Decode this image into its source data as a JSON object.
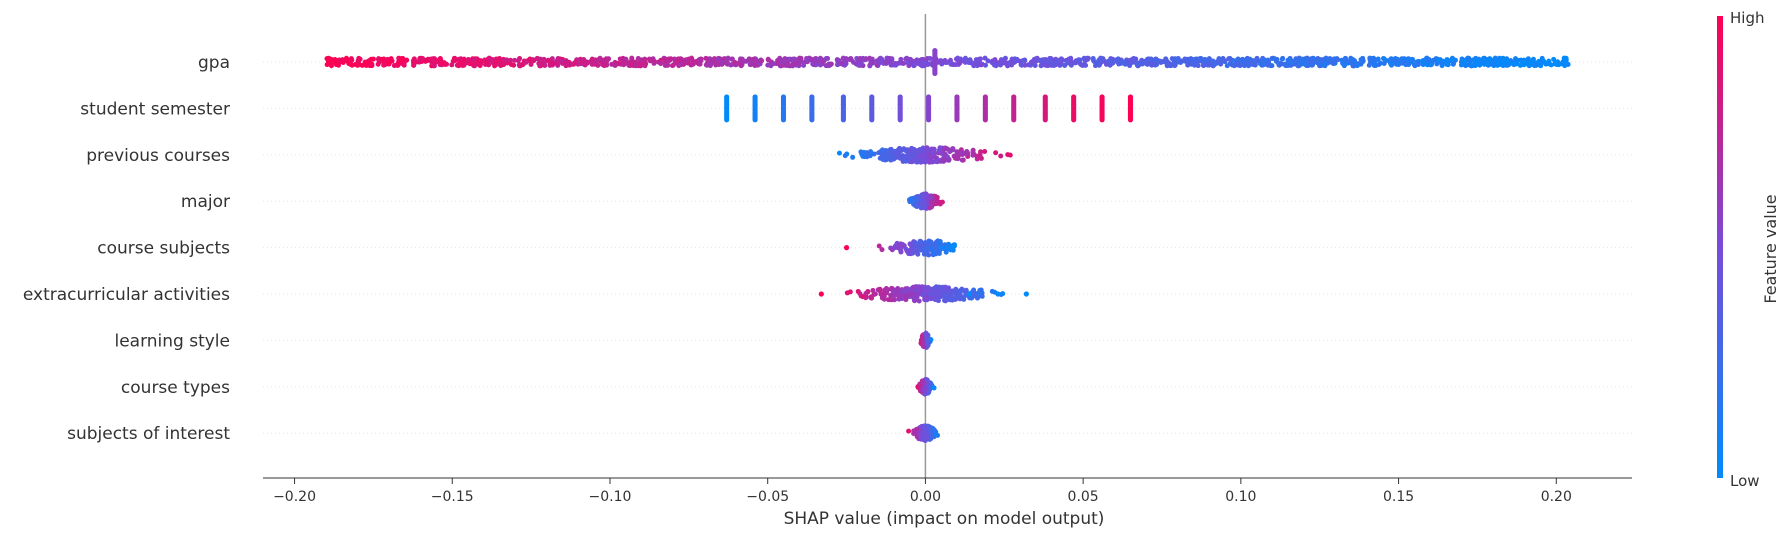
{
  "chart_data": {
    "type": "scatter",
    "title": "",
    "xlabel": "SHAP value (impact on model output)",
    "ylabel": "",
    "xlim": [
      -0.21,
      0.224
    ],
    "x_ticks": [
      -0.2,
      -0.15,
      -0.1,
      -0.05,
      0.0,
      0.05,
      0.1,
      0.15,
      0.2
    ],
    "x_tick_labels": [
      "−0.20",
      "−0.15",
      "−0.10",
      "−0.05",
      "0.00",
      "0.05",
      "0.10",
      "0.15",
      "0.20"
    ],
    "legend": {
      "title": "Feature value",
      "high_label": "High",
      "low_label": "Low",
      "low_color": "#008bfb",
      "high_color": "#ff0052",
      "placement": "right"
    },
    "features": [
      "gpa",
      "student semester",
      "previous courses",
      "major",
      "course subjects",
      "extracurricular activities",
      "learning style",
      "course types",
      "subjects of interest"
    ],
    "series": [
      {
        "feature": "gpa",
        "kind": "continuous",
        "shap_range": [
          -0.19,
          0.204
        ],
        "value_trend": "decreasing",
        "near_zero_cluster": true
      },
      {
        "feature": "student semester",
        "kind": "discrete",
        "points": [
          {
            "x": -0.063,
            "value": 0.0
          },
          {
            "x": -0.054,
            "value": 0.077
          },
          {
            "x": -0.045,
            "value": 0.154
          },
          {
            "x": -0.036,
            "value": 0.231
          },
          {
            "x": -0.026,
            "value": 0.308
          },
          {
            "x": -0.017,
            "value": 0.385
          },
          {
            "x": -0.008,
            "value": 0.462
          },
          {
            "x": 0.001,
            "value": 0.538
          },
          {
            "x": 0.01,
            "value": 0.615
          },
          {
            "x": 0.019,
            "value": 0.692
          },
          {
            "x": 0.028,
            "value": 0.769
          },
          {
            "x": 0.038,
            "value": 0.846
          },
          {
            "x": 0.047,
            "value": 0.923
          },
          {
            "x": 0.056,
            "value": 0.97
          },
          {
            "x": 0.065,
            "value": 1.0
          }
        ]
      },
      {
        "feature": "previous courses",
        "kind": "continuous",
        "shap_range": [
          -0.03,
          0.032
        ],
        "value_trend": "increasing"
      },
      {
        "feature": "major",
        "kind": "continuous",
        "shap_range": [
          -0.007,
          0.007
        ],
        "value_trend": "increasing"
      },
      {
        "feature": "course subjects",
        "kind": "continuous",
        "shap_range": [
          -0.025,
          0.01
        ],
        "value_trend": "decreasing",
        "outliers": [
          {
            "x": -0.025,
            "value": 1.0
          }
        ]
      },
      {
        "feature": "extracurricular activities",
        "kind": "continuous",
        "shap_range": [
          -0.033,
          0.032
        ],
        "value_trend": "decreasing",
        "outliers": [
          {
            "x": -0.033,
            "value": 1.0
          },
          {
            "x": 0.014,
            "value": 0.0
          },
          {
            "x": 0.023,
            "value": 0.0
          },
          {
            "x": 0.032,
            "value": 0.0
          }
        ]
      },
      {
        "feature": "learning style",
        "kind": "continuous",
        "shap_range": [
          -0.002,
          0.002
        ],
        "value_trend": "decreasing"
      },
      {
        "feature": "course types",
        "kind": "continuous",
        "shap_range": [
          -0.003,
          0.003
        ],
        "value_trend": "decreasing"
      },
      {
        "feature": "subjects of interest",
        "kind": "continuous",
        "shap_range": [
          -0.007,
          0.005
        ],
        "value_trend": "decreasing"
      }
    ]
  }
}
